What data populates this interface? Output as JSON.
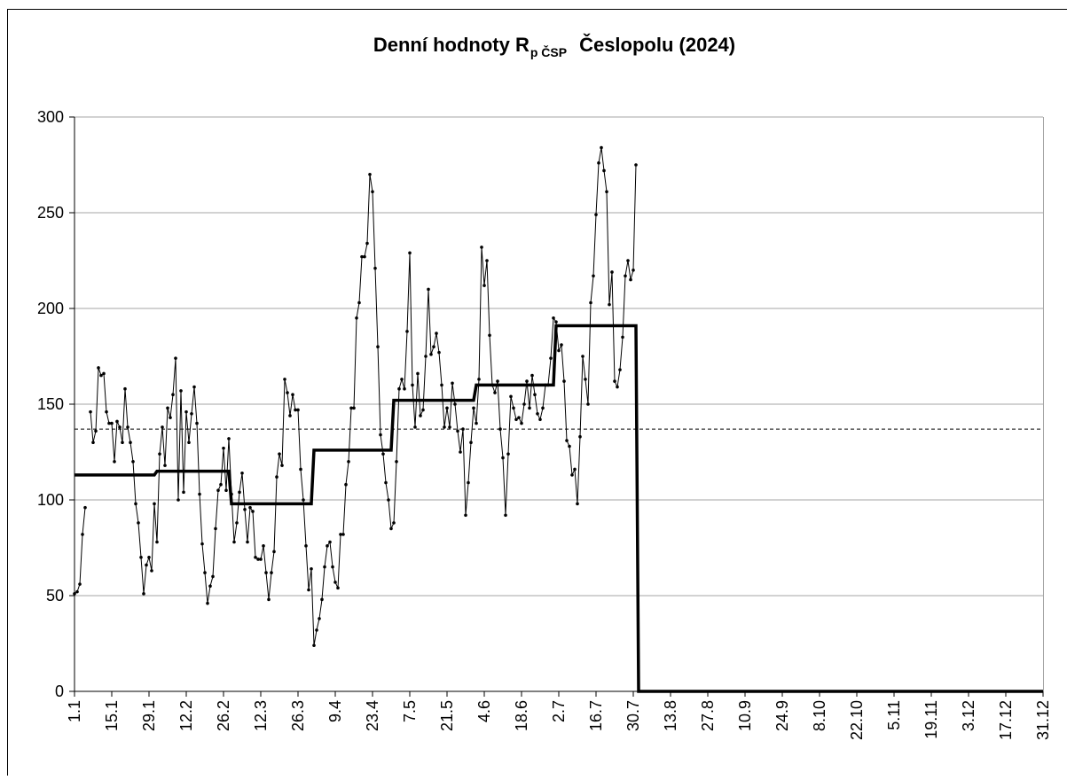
{
  "chart_data": {
    "type": "line",
    "title": {
      "main": "Denní hodnoty R",
      "subscript": "p ČSP",
      "rest": "Česlopolu (2024)"
    },
    "categories": [
      "1.1",
      null,
      null,
      null,
      null,
      null,
      null,
      null,
      null,
      null,
      null,
      null,
      null,
      null,
      "15.1",
      null,
      null,
      null,
      null,
      null,
      null,
      null,
      null,
      null,
      null,
      null,
      null,
      null,
      "29.1",
      null,
      null,
      null,
      null,
      null,
      null,
      null,
      null,
      null,
      null,
      null,
      null,
      null,
      "12.2",
      null,
      null,
      null,
      null,
      null,
      null,
      null,
      null,
      null,
      null,
      null,
      null,
      null,
      "26.2",
      null,
      null,
      null,
      null,
      null,
      null,
      null,
      null,
      null,
      null,
      null,
      null,
      null,
      "12.3",
      null,
      null,
      null,
      null,
      null,
      null,
      null,
      null,
      null,
      null,
      null,
      null,
      null,
      "26.3",
      null,
      null,
      null,
      null,
      null,
      null,
      null,
      null,
      null,
      null,
      null,
      null,
      null,
      "9.4",
      null,
      null,
      null,
      null,
      null,
      null,
      null,
      null,
      null,
      null,
      null,
      null,
      null,
      "23.4",
      null,
      null,
      null,
      null,
      null,
      null,
      null,
      null,
      null,
      null,
      null,
      null,
      null,
      "7.5",
      null,
      null,
      null,
      null,
      null,
      null,
      null,
      null,
      null,
      null,
      null,
      null,
      null,
      "21.5",
      null,
      null,
      null,
      null,
      null,
      null,
      null,
      null,
      null,
      null,
      null,
      null,
      null,
      "4.6",
      null,
      null,
      null,
      null,
      null,
      null,
      null,
      null,
      null,
      null,
      null,
      null,
      null,
      "18.6",
      null,
      null,
      null,
      null,
      null,
      null,
      null,
      null,
      null,
      null,
      null,
      null,
      null,
      "2.7",
      null,
      null,
      null,
      null,
      null,
      null,
      null,
      null,
      null,
      null,
      null,
      null,
      null,
      "16.7",
      null,
      null,
      null,
      null,
      null,
      null,
      null,
      null,
      null,
      null,
      null,
      null,
      null,
      "30.7",
      null,
      null,
      null,
      null,
      null,
      null,
      null,
      null,
      null,
      null,
      null,
      null,
      null,
      "13.8",
      null,
      null,
      null,
      null,
      null,
      null,
      null,
      null,
      null,
      null,
      null,
      null,
      null,
      "27.8",
      null,
      null,
      null,
      null,
      null,
      null,
      null,
      null,
      null,
      null,
      null,
      null,
      null,
      "10.9",
      null,
      null,
      null,
      null,
      null,
      null,
      null,
      null,
      null,
      null,
      null,
      null,
      null,
      "24.9",
      null,
      null,
      null,
      null,
      null,
      null,
      null,
      null,
      null,
      null,
      null,
      null,
      null,
      "8.10",
      null,
      null,
      null,
      null,
      null,
      null,
      null,
      null,
      null,
      null,
      null,
      null,
      null,
      "22.10",
      null,
      null,
      null,
      null,
      null,
      null,
      null,
      null,
      null,
      null,
      null,
      null,
      null,
      "5.11",
      null,
      null,
      null,
      null,
      null,
      null,
      null,
      null,
      null,
      null,
      null,
      null,
      null,
      "19.11",
      null,
      null,
      null,
      null,
      null,
      null,
      null,
      null,
      null,
      null,
      null,
      null,
      null,
      "3.12",
      null,
      null,
      null,
      null,
      null,
      null,
      null,
      null,
      null,
      null,
      null,
      null,
      null,
      "17.12",
      null,
      null,
      null,
      null,
      null,
      null,
      null,
      null,
      null,
      null,
      null,
      null,
      null,
      "31.12"
    ],
    "series": [
      {
        "color": "#000000",
        "style": "thin-markers",
        "values": [
          51,
          52,
          56,
          82,
          96,
          null,
          146,
          130,
          136,
          169,
          165,
          166,
          146,
          140,
          140,
          120,
          141,
          138,
          130,
          158,
          138,
          130,
          120,
          98,
          88,
          70,
          51,
          66,
          70,
          63,
          98,
          78,
          124,
          138,
          118,
          148,
          143,
          155,
          174,
          100,
          157,
          104,
          146,
          130,
          145,
          159,
          140,
          103,
          77,
          62,
          46,
          55,
          60,
          85,
          105,
          108,
          127,
          105,
          132,
          103,
          78,
          88,
          104,
          114,
          95,
          78,
          96,
          94,
          70,
          69,
          69,
          76,
          62,
          48,
          62,
          73,
          112,
          124,
          118,
          163,
          156,
          144,
          155,
          147,
          147,
          116,
          100,
          76,
          53,
          64,
          24,
          32,
          38,
          48,
          65,
          76,
          78,
          65,
          57,
          54,
          82,
          82,
          108,
          120,
          148,
          148,
          195,
          203,
          227,
          227,
          234,
          270,
          261,
          221,
          180,
          134,
          124,
          109,
          100,
          85,
          88,
          120,
          158,
          163,
          158,
          188,
          229,
          160,
          138,
          166,
          144,
          147,
          175,
          210,
          176,
          180,
          187,
          177,
          160,
          138,
          148,
          138,
          161,
          150,
          136,
          125,
          137,
          92,
          109,
          130,
          148,
          140,
          163,
          232,
          212,
          225,
          186,
          160,
          156,
          162,
          137,
          122,
          92,
          124,
          154,
          148,
          142,
          143,
          140,
          150,
          162,
          148,
          165,
          155,
          145,
          142,
          148,
          160,
          160,
          174,
          195,
          193,
          178,
          181,
          162,
          131,
          128,
          113,
          116,
          98,
          133,
          175,
          163,
          150,
          203,
          217,
          249,
          276,
          284,
          272,
          261,
          202,
          219,
          162,
          159,
          168,
          185,
          217,
          225,
          215,
          220,
          275,
          null,
          null,
          null,
          null,
          null,
          null,
          null,
          null,
          null,
          null,
          null,
          null,
          null,
          null,
          null,
          null,
          null,
          null,
          null,
          null,
          null,
          null,
          null,
          null,
          null,
          null,
          null,
          null,
          null,
          null,
          null,
          null,
          null,
          null,
          null,
          null,
          null,
          null,
          null,
          null,
          null,
          null,
          null,
          null,
          null,
          null,
          null,
          null,
          null,
          null,
          null,
          null,
          null,
          null,
          null,
          null,
          null,
          null,
          null,
          null,
          null,
          null,
          null,
          null,
          null,
          null,
          null,
          null,
          null,
          null,
          null,
          null,
          null,
          null,
          null,
          null,
          null,
          null,
          null,
          null,
          null,
          null,
          null,
          null,
          null,
          null,
          null,
          null,
          null,
          null,
          null,
          null,
          null,
          null,
          null,
          null,
          null,
          null,
          null,
          null,
          null,
          null,
          null,
          null,
          null,
          null,
          null,
          null,
          null,
          null,
          null,
          null,
          null,
          null,
          null,
          null,
          null,
          null,
          null,
          null,
          null,
          null,
          null,
          null,
          null,
          null,
          null,
          null,
          null,
          null,
          null,
          null,
          null,
          null,
          null,
          null,
          null,
          null,
          null,
          null,
          null,
          null,
          null,
          null,
          null,
          null,
          null,
          null,
          null,
          null,
          null,
          null,
          null
        ]
      },
      {
        "color": "#000000",
        "style": "thick",
        "values": [
          113,
          113,
          113,
          113,
          113,
          113,
          113,
          113,
          113,
          113,
          113,
          113,
          113,
          113,
          113,
          113,
          113,
          113,
          113,
          113,
          113,
          113,
          113,
          113,
          113,
          113,
          113,
          113,
          113,
          113,
          113,
          115,
          115,
          115,
          115,
          115,
          115,
          115,
          115,
          115,
          115,
          115,
          115,
          115,
          115,
          115,
          115,
          115,
          115,
          115,
          115,
          115,
          115,
          115,
          115,
          115,
          115,
          115,
          115,
          98,
          98,
          98,
          98,
          98,
          98,
          98,
          98,
          98,
          98,
          98,
          98,
          98,
          98,
          98,
          98,
          98,
          98,
          98,
          98,
          98,
          98,
          98,
          98,
          98,
          98,
          98,
          98,
          98,
          98,
          98,
          126,
          126,
          126,
          126,
          126,
          126,
          126,
          126,
          126,
          126,
          126,
          126,
          126,
          126,
          126,
          126,
          126,
          126,
          126,
          126,
          126,
          126,
          126,
          126,
          126,
          126,
          126,
          126,
          126,
          126,
          152,
          152,
          152,
          152,
          152,
          152,
          152,
          152,
          152,
          152,
          152,
          152,
          152,
          152,
          152,
          152,
          152,
          152,
          152,
          152,
          152,
          152,
          152,
          152,
          152,
          152,
          152,
          152,
          152,
          152,
          152,
          160,
          160,
          160,
          160,
          160,
          160,
          160,
          160,
          160,
          160,
          160,
          160,
          160,
          160,
          160,
          160,
          160,
          160,
          160,
          160,
          160,
          160,
          160,
          160,
          160,
          160,
          160,
          160,
          160,
          160,
          191,
          191,
          191,
          191,
          191,
          191,
          191,
          191,
          191,
          191,
          191,
          191,
          191,
          191,
          191,
          191,
          191,
          191,
          191,
          191,
          191,
          191,
          191,
          191,
          191,
          191,
          191,
          191,
          191,
          191,
          191,
          0,
          0,
          0,
          0,
          0,
          0,
          0,
          0,
          0,
          0,
          0,
          0,
          0,
          0,
          0,
          0,
          0,
          0,
          0,
          0,
          0,
          0,
          0,
          0,
          0,
          0,
          0,
          0,
          0,
          0,
          0,
          0,
          0,
          0,
          0,
          0,
          0,
          0,
          0,
          0,
          0,
          0,
          0,
          0,
          0,
          0,
          0,
          0,
          0,
          0,
          0,
          0,
          0,
          0,
          0,
          0,
          0,
          0,
          0,
          0,
          0,
          0,
          0,
          0,
          0,
          0,
          0,
          0,
          0,
          0,
          0,
          0,
          0,
          0,
          0,
          0,
          0,
          0,
          0,
          0,
          0,
          0,
          0,
          0,
          0,
          0,
          0,
          0,
          0,
          0,
          0,
          0,
          0,
          0,
          0,
          0,
          0,
          0,
          0,
          0,
          0,
          0,
          0,
          0,
          0,
          0,
          0,
          0,
          0,
          0,
          0,
          0,
          0,
          0,
          0,
          0,
          0,
          0,
          0,
          0,
          0,
          0,
          0,
          0,
          0,
          0,
          0,
          0,
          0,
          0,
          0,
          0,
          0,
          0,
          0,
          0,
          0,
          0,
          0,
          0,
          0,
          0,
          0,
          0,
          0,
          0,
          0,
          0,
          0,
          0,
          0,
          0,
          0
        ]
      }
    ],
    "mean_line": {
      "value": 137,
      "style": "dashed",
      "color": "#000000"
    },
    "ylim": [
      0,
      300
    ],
    "yticks": [
      0,
      50,
      100,
      150,
      200,
      250,
      300
    ],
    "grid": true
  }
}
